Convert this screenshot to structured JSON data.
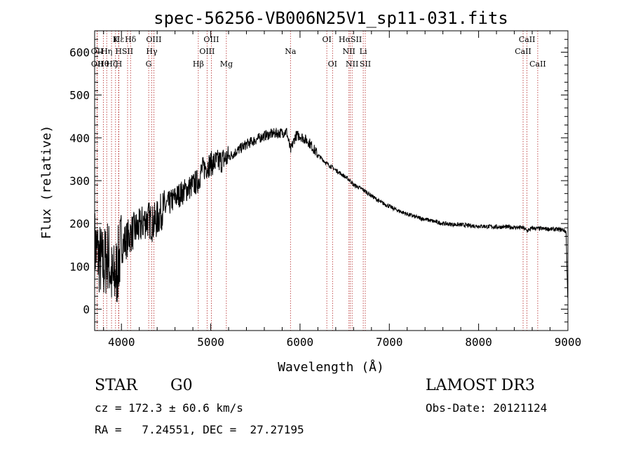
{
  "chart_data": {
    "type": "line",
    "title": "spec-56256-VB006N25V1_sp11-031.fits",
    "xlabel": "Wavelength (Å)",
    "ylabel": "Flux (relative)",
    "xlim": [
      3700,
      9000
    ],
    "ylim": [
      -50,
      650
    ],
    "xticks": [
      4000,
      5000,
      6000,
      7000,
      8000,
      9000
    ],
    "yticks": [
      0,
      100,
      200,
      300,
      400,
      500,
      600
    ],
    "series": [
      {
        "name": "spectrum",
        "x": [
          3700,
          3750,
          3800,
          3850,
          3900,
          3950,
          4000,
          4050,
          4100,
          4150,
          4200,
          4250,
          4300,
          4350,
          4400,
          4450,
          4500,
          4600,
          4700,
          4800,
          4861,
          4900,
          5000,
          5100,
          5200,
          5300,
          5400,
          5500,
          5600,
          5700,
          5800,
          5850,
          5893,
          5950,
          6000,
          6100,
          6200,
          6300,
          6400,
          6500,
          6563,
          6600,
          6700,
          6800,
          6900,
          7000,
          7100,
          7200,
          7300,
          7400,
          7500,
          7600,
          7700,
          7800,
          7900,
          8000,
          8100,
          8200,
          8300,
          8400,
          8500,
          8542,
          8600,
          8700,
          8800,
          8900,
          8950,
          8980,
          9000
        ],
        "values": [
          150,
          120,
          100,
          130,
          60,
          90,
          150,
          160,
          175,
          185,
          190,
          205,
          210,
          200,
          210,
          230,
          240,
          260,
          275,
          290,
          300,
          325,
          340,
          345,
          355,
          370,
          385,
          395,
          405,
          410,
          412,
          415,
          370,
          405,
          405,
          390,
          360,
          340,
          325,
          310,
          300,
          290,
          280,
          265,
          250,
          240,
          230,
          222,
          215,
          210,
          205,
          200,
          198,
          197,
          195,
          194,
          193,
          192,
          192,
          191,
          190,
          183,
          189,
          188,
          187,
          186,
          185,
          180,
          10
        ]
      }
    ],
    "lines": [
      {
        "label": "Hε",
        "x": 3970,
        "row": 0
      },
      {
        "label": "K",
        "x": 3934,
        "row": 0
      },
      {
        "label": "Hδ",
        "x": 4102,
        "row": 0
      },
      {
        "label": "OIII",
        "x": 4363,
        "row": 0
      },
      {
        "label": "OIII",
        "x": 5007,
        "row": 0
      },
      {
        "label": "OI",
        "x": 6300,
        "row": 0
      },
      {
        "label": "HαSII",
        "x": 6563,
        "row": 0
      },
      {
        "label": "CaII",
        "x": 8542,
        "row": 0
      },
      {
        "label": "OII",
        "x": 3727,
        "row": 1
      },
      {
        "label": "Hη",
        "x": 3835,
        "row": 1
      },
      {
        "label": "H",
        "x": 3968,
        "row": 1
      },
      {
        "label": "SII",
        "x": 4069,
        "row": 1
      },
      {
        "label": "Hγ",
        "x": 4340,
        "row": 1
      },
      {
        "label": "OIII",
        "x": 4959,
        "row": 1
      },
      {
        "label": "NII",
        "x": 6548,
        "row": 1
      },
      {
        "label": "Li",
        "x": 6708,
        "row": 1
      },
      {
        "label": "CaII",
        "x": 8498,
        "row": 1
      },
      {
        "label": "OII",
        "x": 3729,
        "row": 2
      },
      {
        "label": "Hθ",
        "x": 3797,
        "row": 2
      },
      {
        "label": "Hζ",
        "x": 3889,
        "row": 2
      },
      {
        "label": "H",
        "x": 3970,
        "row": 2
      },
      {
        "label": "G",
        "x": 4305,
        "row": 2
      },
      {
        "label": "Hβ",
        "x": 4861,
        "row": 2
      },
      {
        "label": "Mg",
        "x": 5175,
        "row": 2
      },
      {
        "label": "Na",
        "x": 5893,
        "row": 1
      },
      {
        "label": "OI",
        "x": 6364,
        "row": 2
      },
      {
        "label": "NII",
        "x": 6583,
        "row": 2
      },
      {
        "label": "SII",
        "x": 6731,
        "row": 2
      },
      {
        "label": "CaII",
        "x": 8662,
        "row": 2
      }
    ],
    "grid": false
  },
  "info": {
    "class_label": "STAR",
    "subclass": "G0",
    "survey": "LAMOST DR3",
    "redshift_line": "cz = 172.3 ± 60.6 km/s",
    "obs_date_line": "Obs-Date: 20121124",
    "coords_line": "RA =   7.24551, DEC =  27.27195"
  },
  "colors": {
    "line_marker": "#b22222",
    "spectrum": "#000000",
    "axes": "#000000"
  }
}
